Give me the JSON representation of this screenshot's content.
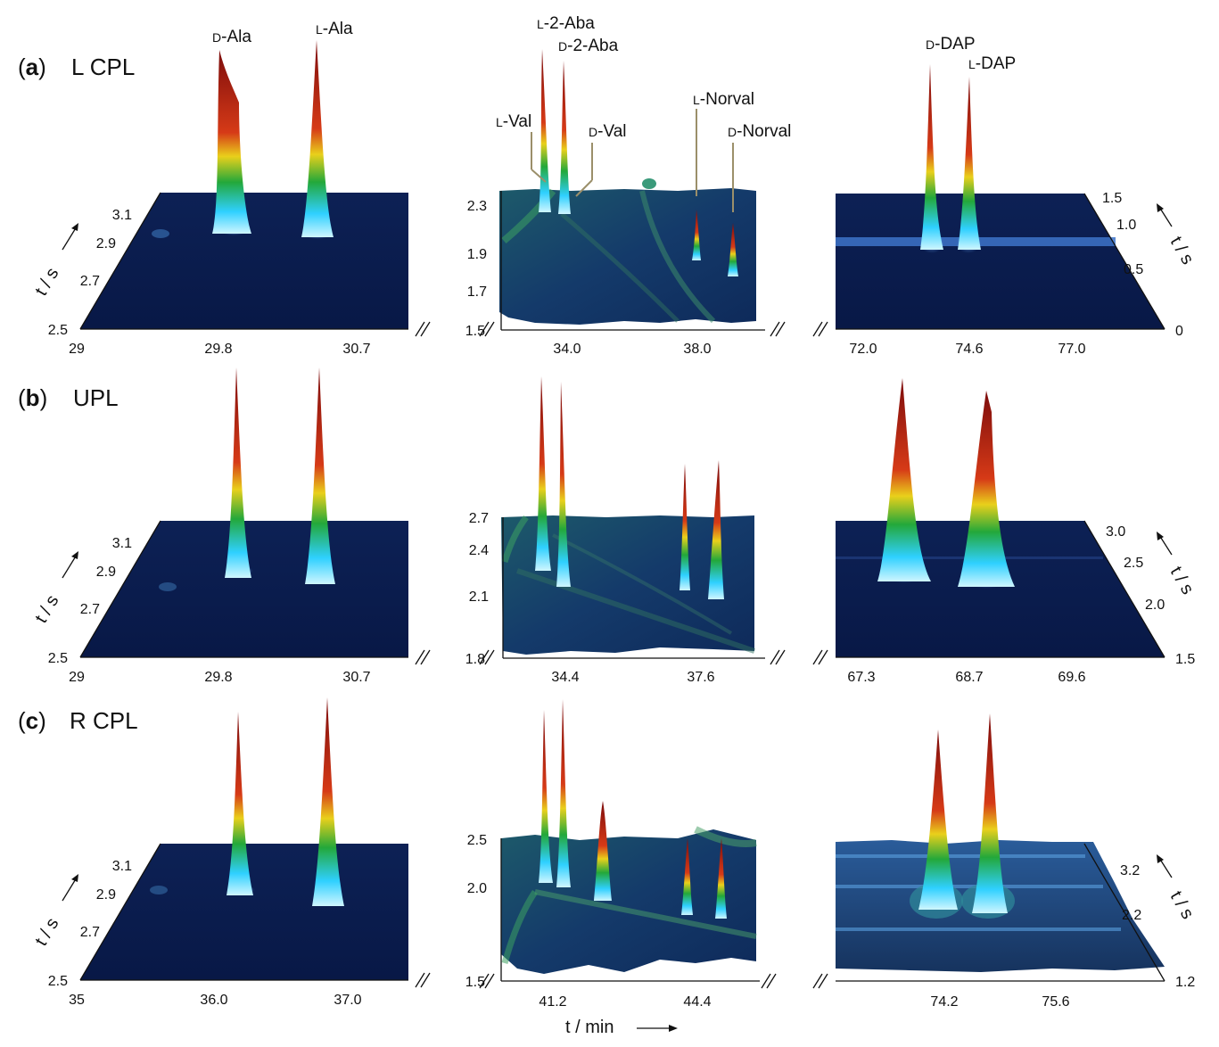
{
  "rows": [
    {
      "tag": "a",
      "title": "L CPL"
    },
    {
      "tag": "b",
      "title": "UPL"
    },
    {
      "tag": "c",
      "title": "R CPL"
    }
  ],
  "axis_labels": {
    "t1": "t / min",
    "t2_left": "t / s",
    "t2_right": "t / s"
  },
  "colors": {
    "floor": "#0b1f52",
    "floor_edge": "#061236",
    "peak_top": "#8a0f0f",
    "peak_mid": "#e8c21a",
    "peak_low": "#2aa23a",
    "peak_base": "#bff2ff"
  },
  "chart_data": [
    {
      "type": "surface",
      "panel": "a-left",
      "x_ticks": [
        "29",
        "29.8",
        "30.7"
      ],
      "y_ticks": [
        "2.5",
        "2.7",
        "2.9",
        "3.1"
      ],
      "peaks": [
        {
          "name": "D-Ala",
          "label_prefix": "D",
          "label_suffix": "-Ala",
          "x": 29.8,
          "y": 3.0,
          "height": 1.0
        },
        {
          "name": "L-Ala",
          "label_prefix": "L",
          "label_suffix": "-Ala",
          "x": 30.5,
          "y": 3.0,
          "height": 1.0
        }
      ]
    },
    {
      "type": "surface",
      "panel": "a-middle",
      "x_ticks": [
        "34.0",
        "38.0"
      ],
      "y_ticks": [
        "1.5",
        "1.7",
        "1.9",
        "2.3"
      ],
      "peaks": [
        {
          "name": "L-Val",
          "label_prefix": "L",
          "label_suffix": "-Val",
          "x": 33.8,
          "y": 2.1,
          "height": 0.2
        },
        {
          "name": "L-2-Aba",
          "label_prefix": "L",
          "label_suffix": "-2-Aba",
          "x": 33.7,
          "y": 2.0,
          "height": 1.0
        },
        {
          "name": "D-2-Aba",
          "label_prefix": "D",
          "label_suffix": "-2-Aba",
          "x": 34.0,
          "y": 2.0,
          "height": 0.95
        },
        {
          "name": "D-Val",
          "label_prefix": "D",
          "label_suffix": "-Val",
          "x": 34.1,
          "y": 2.1,
          "height": 0.2
        },
        {
          "name": "L-Norval",
          "label_prefix": "L",
          "label_suffix": "-Norval",
          "x": 37.4,
          "y": 1.9,
          "height": 0.3
        },
        {
          "name": "D-Norval",
          "label_prefix": "D",
          "label_suffix": "-Norval",
          "x": 38.2,
          "y": 1.8,
          "height": 0.25
        }
      ]
    },
    {
      "type": "surface",
      "panel": "a-right",
      "x_ticks": [
        "72.0",
        "74.6",
        "77.0"
      ],
      "y_ticks": [
        "0",
        "0.5",
        "1.0",
        "1.5"
      ],
      "peaks": [
        {
          "name": "D-DAP",
          "label_prefix": "D",
          "label_suffix": "-DAP",
          "x": 73.8,
          "y": 0.9,
          "height": 1.0
        },
        {
          "name": "L-DAP",
          "label_prefix": "L",
          "label_suffix": "-DAP",
          "x": 74.6,
          "y": 0.9,
          "height": 0.9
        }
      ]
    },
    {
      "type": "surface",
      "panel": "b-left",
      "x_ticks": [
        "29",
        "29.8",
        "30.7"
      ],
      "y_ticks": [
        "2.5",
        "2.7",
        "2.9",
        "3.1"
      ],
      "peaks": [
        {
          "x": 29.9,
          "y": 3.0,
          "height": 1.0
        },
        {
          "x": 30.5,
          "y": 3.0,
          "height": 1.0
        }
      ]
    },
    {
      "type": "surface",
      "panel": "b-middle",
      "x_ticks": [
        "34.4",
        "37.6"
      ],
      "y_ticks": [
        "1.8",
        "2.1",
        "2.4",
        "2.7"
      ],
      "peaks": [
        {
          "x": 34.0,
          "y": 2.4,
          "height": 1.0
        },
        {
          "x": 34.3,
          "y": 2.4,
          "height": 0.95
        },
        {
          "x": 36.9,
          "y": 2.3,
          "height": 0.5
        },
        {
          "x": 37.3,
          "y": 2.3,
          "height": 0.5
        }
      ]
    },
    {
      "type": "surface",
      "panel": "b-right",
      "x_ticks": [
        "67.3",
        "68.7",
        "69.6"
      ],
      "y_ticks": [
        "1.5",
        "2.0",
        "2.5",
        "3.0"
      ],
      "peaks": [
        {
          "x": 67.8,
          "y": 2.6,
          "height": 1.0
        },
        {
          "x": 68.7,
          "y": 2.6,
          "height": 0.85
        }
      ]
    },
    {
      "type": "surface",
      "panel": "c-left",
      "x_ticks": [
        "35",
        "36.0",
        "37.0"
      ],
      "y_ticks": [
        "2.5",
        "2.7",
        "2.9",
        "3.1"
      ],
      "peaks": [
        {
          "x": 36.2,
          "y": 3.0,
          "height": 1.0
        },
        {
          "x": 36.8,
          "y": 3.0,
          "height": 1.0
        }
      ]
    },
    {
      "type": "surface",
      "panel": "c-middle",
      "x_ticks": [
        "41.2",
        "44.4"
      ],
      "y_ticks": [
        "1.5",
        "2.0",
        "2.5"
      ],
      "peaks": [
        {
          "x": 41.0,
          "y": 2.2,
          "height": 1.0
        },
        {
          "x": 41.3,
          "y": 2.2,
          "height": 1.0
        },
        {
          "x": 42.0,
          "y": 2.0,
          "height": 0.4
        },
        {
          "x": 43.8,
          "y": 2.1,
          "height": 0.4
        },
        {
          "x": 44.6,
          "y": 2.1,
          "height": 0.4
        }
      ]
    },
    {
      "type": "surface",
      "panel": "c-right",
      "x_ticks": [
        "74.2",
        "75.6"
      ],
      "y_ticks": [
        "1.2",
        "2.2",
        "3.2"
      ],
      "peaks": [
        {
          "x": 74.5,
          "y": 2.6,
          "height": 1.0
        },
        {
          "x": 75.0,
          "y": 2.6,
          "height": 1.0
        }
      ]
    }
  ]
}
